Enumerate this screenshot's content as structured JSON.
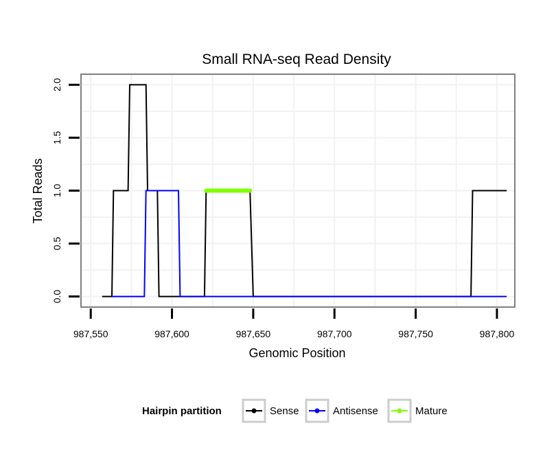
{
  "chart_data": {
    "type": "line",
    "title": "Small RNA-seq Read Density",
    "xlabel": "Genomic Position",
    "ylabel": "Total Reads",
    "xlim": [
      987544,
      987811
    ],
    "ylim": [
      -0.1,
      2.1
    ],
    "x_ticks": [
      987550,
      987600,
      987650,
      987700,
      987750,
      987800
    ],
    "x_tick_labels": [
      "987,550",
      "987,600",
      "987,650",
      "987,700",
      "987,750",
      "987,800"
    ],
    "y_ticks": [
      0,
      0.5,
      1,
      1.5,
      2
    ],
    "y_tick_labels": [
      "0.0",
      "0.5",
      "1.0",
      "1.5",
      "2.0"
    ],
    "grid": true,
    "legend": {
      "title": "Hairpin partition",
      "position": "bottom",
      "entries": [
        "Sense",
        "Antisense",
        "Mature"
      ]
    },
    "series": [
      {
        "name": "Sense",
        "color": "#000000",
        "x": [
          987557,
          987563,
          987564,
          987573,
          987574,
          987584,
          987585,
          987591,
          987592,
          987620,
          987621,
          987648,
          987650,
          987784,
          987785,
          987806
        ],
        "values": [
          0,
          0,
          1,
          1,
          2,
          2,
          1,
          1,
          0,
          0,
          1,
          1,
          0,
          0,
          1,
          1
        ]
      },
      {
        "name": "Antisense",
        "color": "#0000ff",
        "x": [
          987563,
          987583,
          987584,
          987604,
          987605,
          987648,
          987649,
          987784,
          987785,
          987806
        ],
        "values": [
          0,
          0,
          1,
          1,
          0,
          0,
          0,
          0,
          0,
          0
        ]
      },
      {
        "name": "Mature",
        "color": "#7fff00",
        "x": [
          987621,
          987648
        ],
        "values": [
          1,
          1
        ]
      }
    ]
  }
}
